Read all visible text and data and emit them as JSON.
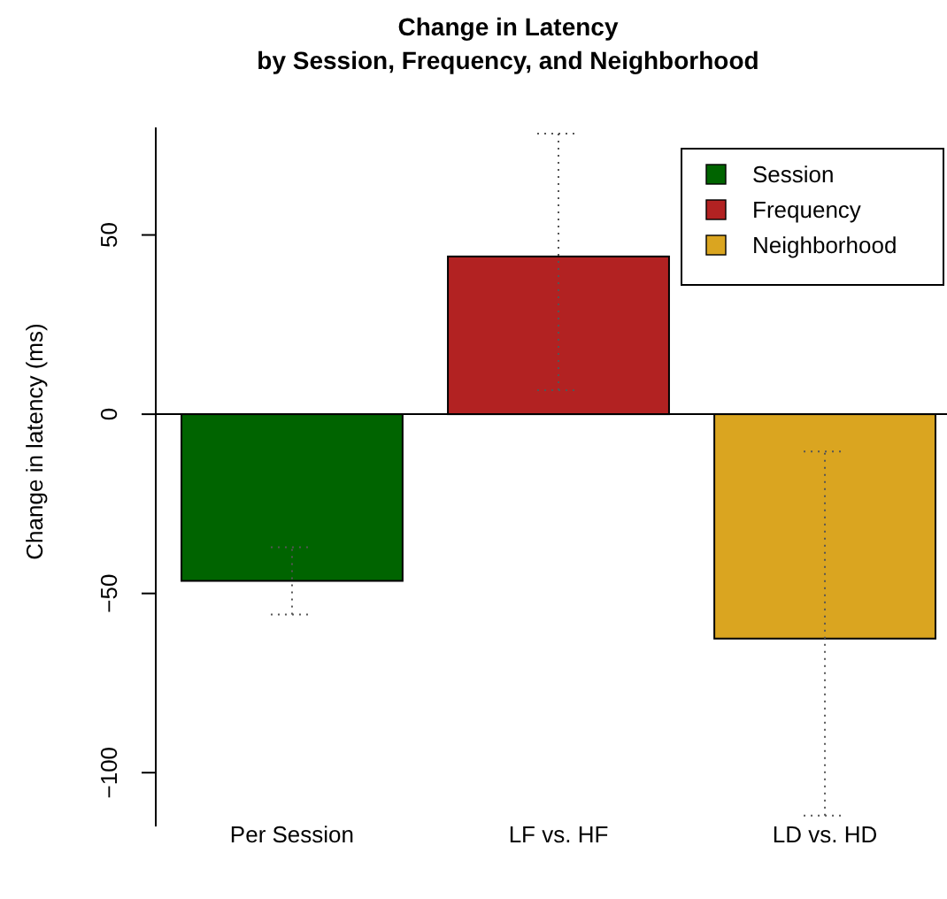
{
  "chart_data": {
    "type": "bar",
    "title": "Change in Latency\nby Session, Frequency, and Neighborhood",
    "ylabel": "Change in latency (ms)",
    "categories": [
      "Per Session",
      "LF vs. HF",
      "LD vs. HD"
    ],
    "series": [
      {
        "name": "Session",
        "color": "#006400",
        "values": [
          -46.5,
          null,
          null
        ],
        "errors": [
          [
            -55.9,
            -37.1
          ],
          null,
          null
        ]
      },
      {
        "name": "Frequency",
        "color": "#b22222",
        "values": [
          null,
          44,
          null
        ],
        "errors": [
          null,
          [
            6.7,
            78.3
          ],
          null
        ]
      },
      {
        "name": "Neighborhood",
        "color": "#daa520",
        "values": [
          null,
          null,
          -62.6
        ],
        "errors": [
          null,
          null,
          [
            -112,
            -10.4
          ]
        ]
      }
    ],
    "ylim": [
      -115,
      80
    ],
    "yticks": [
      -100,
      -50,
      0,
      50
    ],
    "legend": "top right",
    "ref_lines": [
      {
        "axis": "y",
        "value": 0
      }
    ]
  }
}
